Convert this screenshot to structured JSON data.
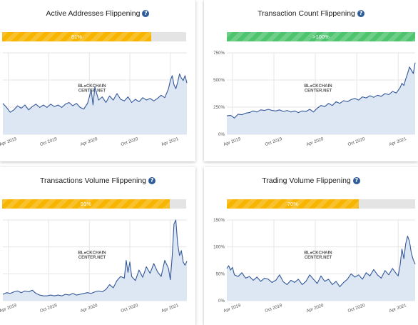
{
  "colors": {
    "line": "#34589a",
    "area": "#dde7f4",
    "grid": "#e6e6e6",
    "progress_yellow": "#f7b500",
    "progress_green": "#4fc46f"
  },
  "watermark": {
    "line1": "BL",
    "line1b": "CKCHAIN",
    "line2": "CENTER.NET"
  },
  "panels": [
    {
      "title": "Active Addresses Flippening",
      "progress_label": "81%",
      "progress_fraction": 0.81,
      "progress_color": "yellow"
    },
    {
      "title": "Transaction Count Flippening",
      "progress_label": ">100%",
      "progress_fraction": 1.0,
      "progress_color": "green"
    },
    {
      "title": "Transactions Volume Flippening",
      "progress_label": "91%",
      "progress_fraction": 0.91,
      "progress_color": "yellow"
    },
    {
      "title": "Trading Volume Flippening",
      "progress_label": "70%",
      "progress_fraction": 0.7,
      "progress_color": "yellow"
    }
  ],
  "chart_data": [
    {
      "type": "area",
      "title": "Active Addresses Flippening",
      "x_ticks": [
        "Apr 2019",
        "Oct 2019",
        "Apr 2020",
        "Oct 2020",
        "Apr 2021"
      ],
      "y_ticks": [],
      "ylim": [
        0,
        1
      ],
      "grid": true,
      "x": [
        0,
        0.02,
        0.04,
        0.06,
        0.08,
        0.1,
        0.12,
        0.14,
        0.16,
        0.18,
        0.2,
        0.22,
        0.24,
        0.26,
        0.28,
        0.3,
        0.32,
        0.34,
        0.36,
        0.38,
        0.4,
        0.42,
        0.44,
        0.46,
        0.47,
        0.48,
        0.49,
        0.5,
        0.52,
        0.54,
        0.56,
        0.58,
        0.6,
        0.62,
        0.64,
        0.66,
        0.68,
        0.7,
        0.72,
        0.74,
        0.76,
        0.78,
        0.8,
        0.82,
        0.84,
        0.86,
        0.88,
        0.9,
        0.91,
        0.92,
        0.93,
        0.94,
        0.95,
        0.96,
        0.97,
        0.98,
        0.99,
        1.0
      ],
      "series": [
        {
          "values": [
            0.38,
            0.33,
            0.27,
            0.3,
            0.35,
            0.32,
            0.36,
            0.3,
            0.34,
            0.37,
            0.33,
            0.36,
            0.33,
            0.37,
            0.34,
            0.36,
            0.33,
            0.37,
            0.39,
            0.35,
            0.38,
            0.33,
            0.31,
            0.38,
            0.46,
            0.55,
            0.36,
            0.58,
            0.42,
            0.46,
            0.39,
            0.47,
            0.42,
            0.5,
            0.43,
            0.41,
            0.46,
            0.39,
            0.43,
            0.4,
            0.45,
            0.42,
            0.44,
            0.41,
            0.44,
            0.48,
            0.45,
            0.56,
            0.66,
            0.72,
            0.61,
            0.56,
            0.64,
            0.74,
            0.69,
            0.66,
            0.72,
            0.63
          ]
        }
      ]
    },
    {
      "type": "area",
      "title": "Transaction Count Flippening",
      "x_ticks": [
        "Apr 2019",
        "Oct 2019",
        "Apr 2020",
        "Oct 2020",
        "Apr 2021"
      ],
      "y_ticks": [
        "0%",
        "250%",
        "500%",
        "750%"
      ],
      "ylim": [
        0,
        750
      ],
      "grid": true,
      "x": [
        0,
        0.02,
        0.04,
        0.06,
        0.08,
        0.1,
        0.12,
        0.14,
        0.16,
        0.18,
        0.2,
        0.22,
        0.24,
        0.26,
        0.28,
        0.3,
        0.32,
        0.34,
        0.36,
        0.38,
        0.4,
        0.42,
        0.44,
        0.46,
        0.48,
        0.5,
        0.52,
        0.54,
        0.56,
        0.58,
        0.6,
        0.62,
        0.64,
        0.66,
        0.68,
        0.7,
        0.72,
        0.74,
        0.76,
        0.78,
        0.8,
        0.82,
        0.84,
        0.86,
        0.88,
        0.9,
        0.92,
        0.93,
        0.94,
        0.95,
        0.96,
        0.97,
        0.98,
        0.99,
        1.0
      ],
      "series": [
        {
          "values": [
            170,
            175,
            150,
            185,
            180,
            195,
            200,
            215,
            205,
            225,
            220,
            230,
            220,
            215,
            225,
            210,
            220,
            205,
            215,
            200,
            215,
            210,
            230,
            205,
            240,
            265,
            255,
            285,
            265,
            300,
            285,
            310,
            300,
            320,
            330,
            315,
            345,
            335,
            355,
            340,
            360,
            350,
            375,
            365,
            395,
            380,
            430,
            470,
            450,
            510,
            560,
            620,
            590,
            560,
            660
          ]
        }
      ]
    },
    {
      "type": "area",
      "title": "Transactions Volume Flippening",
      "x_ticks": [
        "Apr 2019",
        "Oct 2019",
        "Apr 2020",
        "Oct 2020",
        "Apr 2021"
      ],
      "y_ticks": [],
      "ylim": [
        0,
        1
      ],
      "grid": true,
      "x": [
        0,
        0.02,
        0.04,
        0.06,
        0.08,
        0.1,
        0.12,
        0.14,
        0.16,
        0.18,
        0.2,
        0.22,
        0.24,
        0.26,
        0.28,
        0.3,
        0.32,
        0.34,
        0.36,
        0.38,
        0.4,
        0.42,
        0.44,
        0.46,
        0.48,
        0.5,
        0.52,
        0.54,
        0.56,
        0.58,
        0.6,
        0.62,
        0.64,
        0.66,
        0.67,
        0.68,
        0.69,
        0.7,
        0.72,
        0.74,
        0.76,
        0.78,
        0.8,
        0.82,
        0.84,
        0.86,
        0.88,
        0.9,
        0.91,
        0.92,
        0.93,
        0.94,
        0.95,
        0.96,
        0.97,
        0.98,
        0.99,
        1.0
      ],
      "series": [
        {
          "values": [
            0.08,
            0.1,
            0.09,
            0.11,
            0.12,
            0.1,
            0.12,
            0.11,
            0.13,
            0.09,
            0.07,
            0.06,
            0.06,
            0.07,
            0.06,
            0.07,
            0.06,
            0.08,
            0.07,
            0.09,
            0.07,
            0.08,
            0.09,
            0.1,
            0.09,
            0.11,
            0.12,
            0.11,
            0.14,
            0.2,
            0.16,
            0.25,
            0.3,
            0.28,
            0.5,
            0.35,
            0.48,
            0.3,
            0.25,
            0.38,
            0.29,
            0.42,
            0.34,
            0.46,
            0.36,
            0.3,
            0.5,
            0.4,
            0.26,
            0.55,
            0.95,
            1.0,
            0.7,
            0.56,
            0.62,
            0.48,
            0.44,
            0.49
          ]
        }
      ]
    },
    {
      "type": "area",
      "title": "Trading Volume Flippening",
      "x_ticks": [
        "Apr 2019",
        "Oct 2019",
        "Apr 2020",
        "Oct 2020",
        "Apr 2021"
      ],
      "y_ticks": [
        "0%",
        "50%",
        "100%",
        "150%"
      ],
      "ylim": [
        0,
        150
      ],
      "grid": true,
      "x": [
        0,
        0.01,
        0.02,
        0.03,
        0.04,
        0.06,
        0.08,
        0.1,
        0.12,
        0.14,
        0.16,
        0.18,
        0.2,
        0.22,
        0.24,
        0.26,
        0.28,
        0.3,
        0.32,
        0.34,
        0.36,
        0.38,
        0.4,
        0.42,
        0.44,
        0.46,
        0.48,
        0.5,
        0.52,
        0.54,
        0.56,
        0.58,
        0.6,
        0.62,
        0.64,
        0.66,
        0.68,
        0.7,
        0.72,
        0.74,
        0.76,
        0.78,
        0.8,
        0.82,
        0.84,
        0.86,
        0.88,
        0.9,
        0.91,
        0.92,
        0.93,
        0.94,
        0.95,
        0.96,
        0.97,
        0.98,
        0.99,
        1.0
      ],
      "series": [
        {
          "values": [
            60,
            65,
            57,
            62,
            48,
            45,
            52,
            42,
            45,
            38,
            44,
            36,
            42,
            40,
            34,
            38,
            48,
            35,
            30,
            38,
            34,
            40,
            30,
            36,
            48,
            40,
            32,
            46,
            36,
            40,
            30,
            36,
            26,
            34,
            40,
            50,
            44,
            48,
            40,
            52,
            46,
            58,
            48,
            42,
            56,
            48,
            60,
            50,
            46,
            66,
            96,
            78,
            106,
            120,
            110,
            88,
            76,
            68
          ]
        }
      ]
    }
  ]
}
